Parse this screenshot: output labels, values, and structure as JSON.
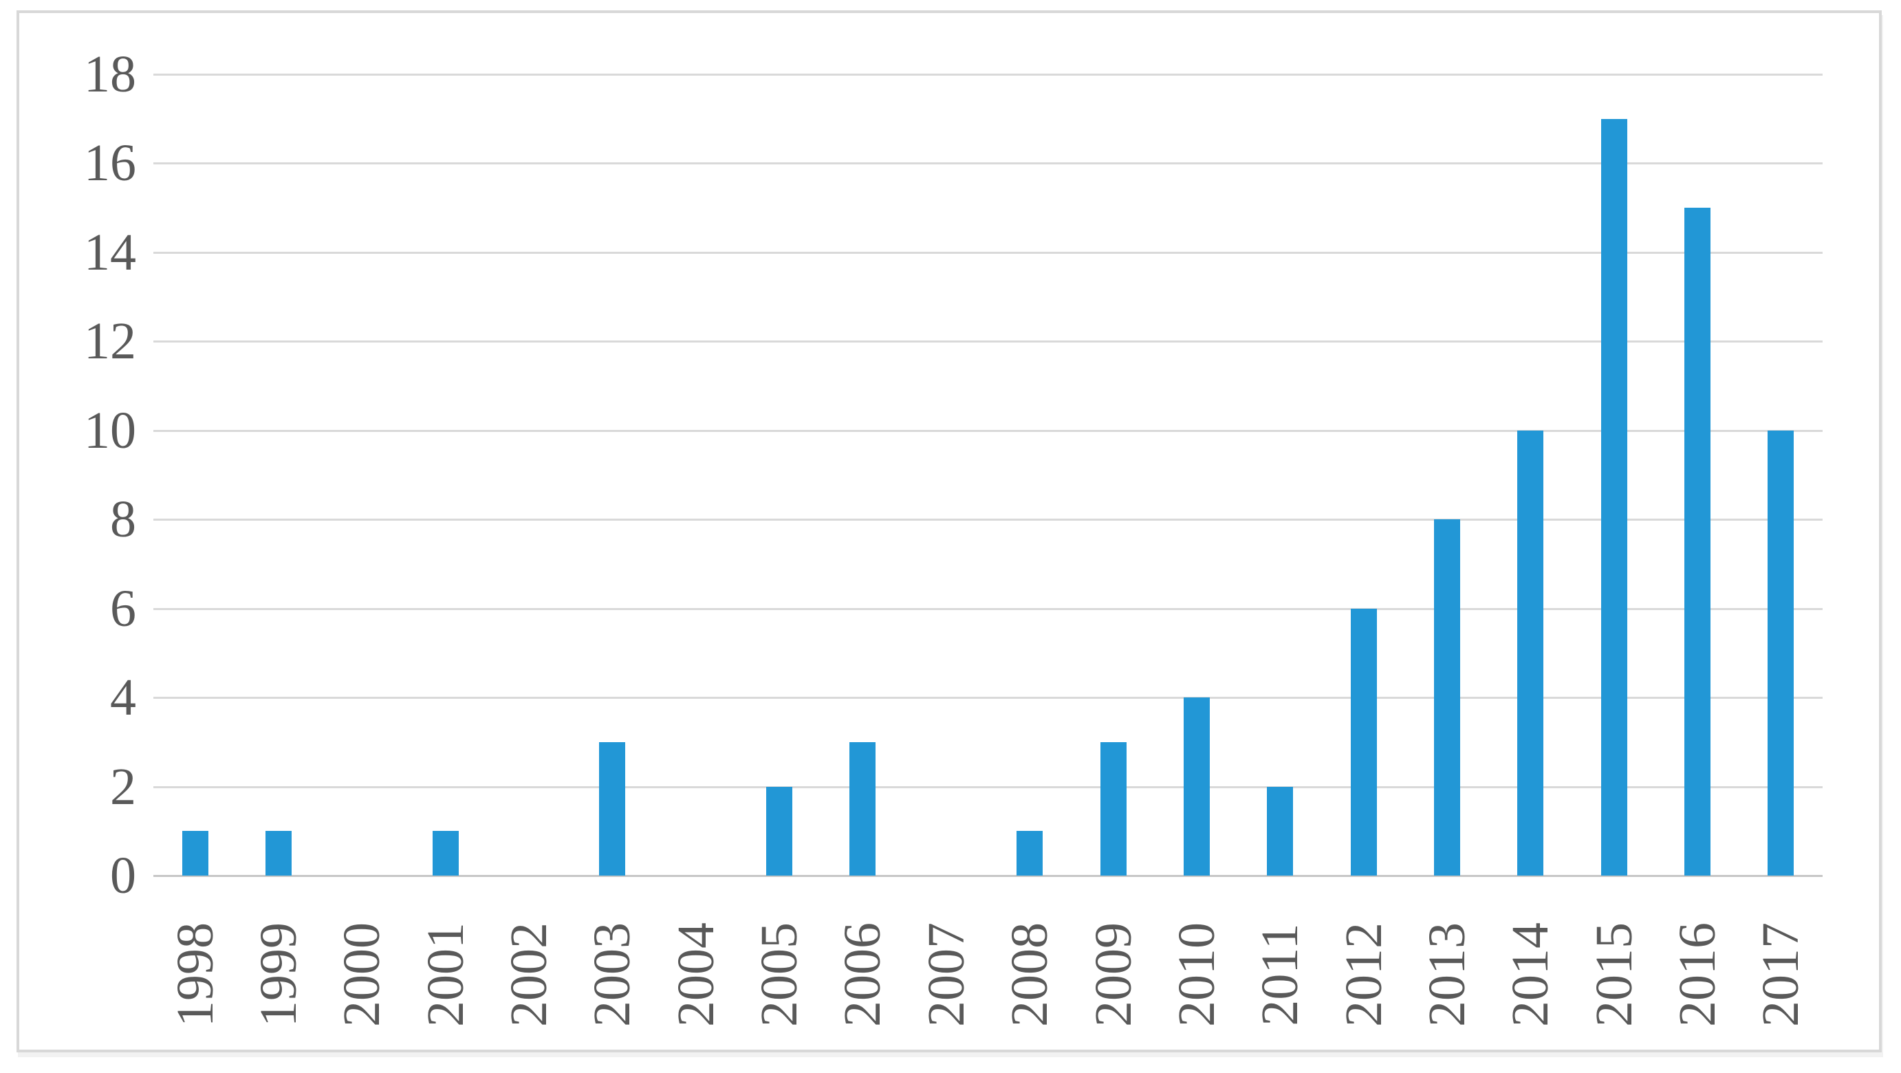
{
  "figure": {
    "background_color": "#ffffff",
    "frame_border_color": "#d8d8d8"
  },
  "chart_data": {
    "type": "bar",
    "title": "",
    "xlabel": "",
    "ylabel": "",
    "categories": [
      "1998",
      "1999",
      "2000",
      "2001",
      "2002",
      "2003",
      "2004",
      "2005",
      "2006",
      "2007",
      "2008",
      "2009",
      "2010",
      "2011",
      "2012",
      "2013",
      "2014",
      "2015",
      "2016",
      "2017"
    ],
    "values": [
      1,
      1,
      0,
      1,
      0,
      3,
      0,
      2,
      3,
      0,
      1,
      3,
      4,
      2,
      6,
      8,
      10,
      17,
      15,
      10
    ],
    "ylim": [
      0,
      18
    ],
    "y_ticks": [
      0,
      2,
      4,
      6,
      8,
      10,
      12,
      14,
      16,
      18
    ],
    "grid": "horizontal",
    "legend_position": "none",
    "bar_color": "#2297d6",
    "gridline_color": "#d9d9d9",
    "axis_line_color": "#c6c6c6",
    "tick_label_color": "#595959"
  }
}
